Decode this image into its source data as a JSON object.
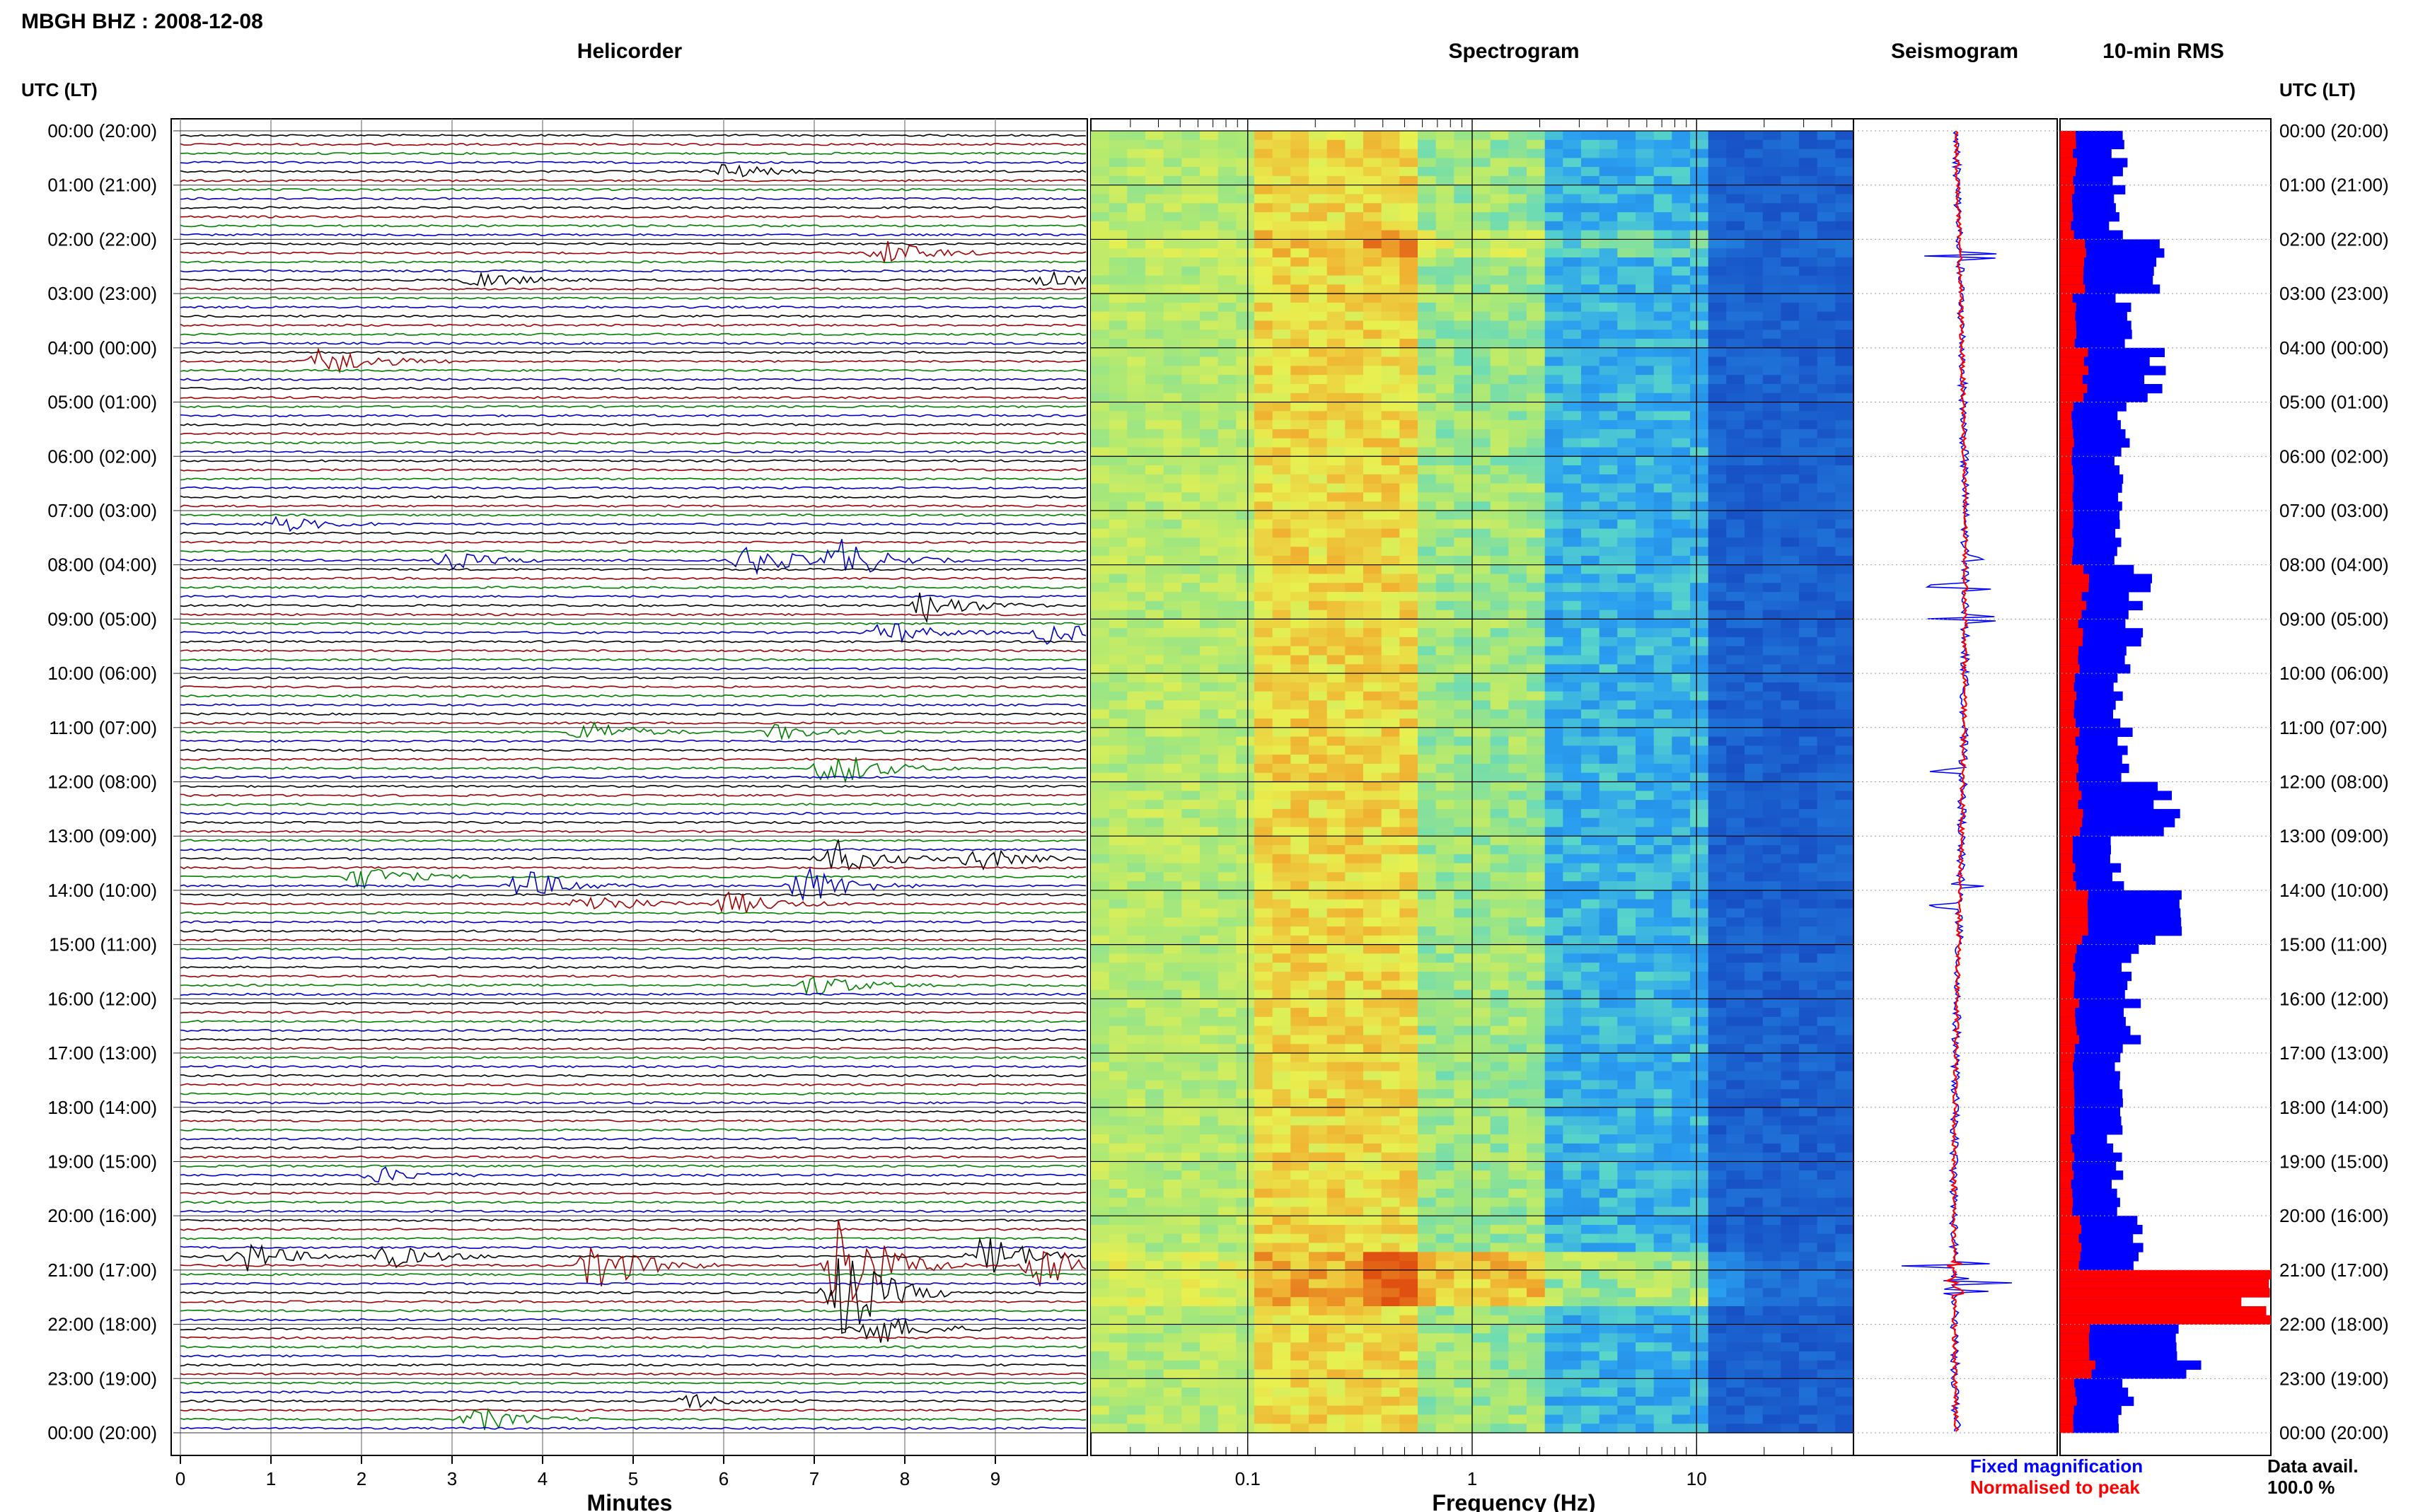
{
  "header": {
    "station_title": "MBGH BHZ : 2008-12-08",
    "utc_label": "UTC (LT)"
  },
  "panels": {
    "helicorder": "Helicorder",
    "spectrogram": "Spectrogram",
    "seismogram": "Seismogram",
    "rms": "10-min RMS"
  },
  "axes": {
    "minutes_label": "Minutes",
    "frequency_label": "Frequency (Hz)"
  },
  "legend": {
    "fixed": "Fixed magnification",
    "normalised": "Normalised to peak",
    "fixed_color": "#0000ff",
    "normalised_color": "#ff0000"
  },
  "availability": {
    "label": "Data avail.",
    "value": "100.0 %"
  },
  "colors": {
    "trace_cycle": [
      "#000000",
      "#a00000",
      "#008000",
      "#0000c0"
    ],
    "rms_fixed": "#0000ff",
    "rms_norm": "#ff0000",
    "spectrogram_ramp": [
      "#2aa0f0",
      "#5ad7c8",
      "#a8e878",
      "#e8f050",
      "#f0b030",
      "#e05010"
    ]
  },
  "chart_data": [
    {
      "type": "heatmap",
      "title": "Helicorder",
      "xlabel": "Minutes",
      "ylabel": "UTC (LT)",
      "x_ticks": [
        "0",
        "1",
        "2",
        "3",
        "4",
        "5",
        "6",
        "7",
        "8",
        "9"
      ],
      "xlim": [
        0,
        10
      ],
      "y_ticks": [
        "00:00 (20:00)",
        "01:00 (21:00)",
        "02:00 (22:00)",
        "03:00 (23:00)",
        "04:00 (00:00)",
        "05:00 (01:00)",
        "06:00 (02:00)",
        "07:00 (03:00)",
        "08:00 (04:00)",
        "09:00 (05:00)",
        "10:00 (06:00)",
        "11:00 (07:00)",
        "12:00 (08:00)",
        "13:00 (09:00)",
        "14:00 (10:00)",
        "15:00 (11:00)",
        "16:00 (12:00)",
        "17:00 (13:00)",
        "18:00 (14:00)",
        "19:00 (15:00)",
        "20:00 (16:00)",
        "21:00 (17:00)",
        "22:00 (18:00)",
        "23:00 (19:00)",
        "00:00 (20:00)"
      ],
      "events": [
        {
          "hour": 0.6,
          "minute": 6.0,
          "amplitude": 2
        },
        {
          "hour": 2.1,
          "minute": 7.8,
          "amplitude": 3
        },
        {
          "hour": 2.6,
          "minute": 3.3,
          "amplitude": 2
        },
        {
          "hour": 2.7,
          "minute": 9.6,
          "amplitude": 2
        },
        {
          "hour": 4.1,
          "minute": 1.6,
          "amplitude": 4
        },
        {
          "hour": 7.2,
          "minute": 1.1,
          "amplitude": 2
        },
        {
          "hour": 7.8,
          "minute": 3.0,
          "amplitude": 2
        },
        {
          "hour": 7.9,
          "minute": 6.3,
          "amplitude": 4
        },
        {
          "hour": 7.8,
          "minute": 7.3,
          "amplitude": 5
        },
        {
          "hour": 8.6,
          "minute": 8.2,
          "amplitude": 4
        },
        {
          "hour": 9.2,
          "minute": 7.8,
          "amplitude": 3
        },
        {
          "hour": 9.2,
          "minute": 9.6,
          "amplitude": 3
        },
        {
          "hour": 11.0,
          "minute": 4.5,
          "amplitude": 3
        },
        {
          "hour": 11.0,
          "minute": 6.6,
          "amplitude": 2
        },
        {
          "hour": 11.6,
          "minute": 7.2,
          "amplitude": 5
        },
        {
          "hour": 13.6,
          "minute": 2.0,
          "amplitude": 3
        },
        {
          "hour": 13.4,
          "minute": 7.2,
          "amplitude": 5
        },
        {
          "hour": 13.4,
          "minute": 8.8,
          "amplitude": 3
        },
        {
          "hour": 13.9,
          "minute": 3.8,
          "amplitude": 4
        },
        {
          "hour": 14.1,
          "minute": 4.5,
          "amplitude": 3
        },
        {
          "hour": 13.9,
          "minute": 6.9,
          "amplitude": 5
        },
        {
          "hour": 14.1,
          "minute": 6.1,
          "amplitude": 3
        },
        {
          "hour": 15.6,
          "minute": 7.0,
          "amplitude": 3
        },
        {
          "hour": 19.1,
          "minute": 2.2,
          "amplitude": 2
        },
        {
          "hour": 20.7,
          "minute": 0.7,
          "amplitude": 4
        },
        {
          "hour": 20.7,
          "minute": 2.3,
          "amplitude": 3
        },
        {
          "hour": 20.8,
          "minute": 4.6,
          "amplitude": 7
        },
        {
          "hour": 20.9,
          "minute": 7.3,
          "amplitude": 14
        },
        {
          "hour": 20.7,
          "minute": 8.9,
          "amplitude": 6
        },
        {
          "hour": 20.8,
          "minute": 9.5,
          "amplitude": 7
        },
        {
          "hour": 21.3,
          "minute": 7.3,
          "amplitude": 12
        },
        {
          "hour": 22.0,
          "minute": 7.6,
          "amplitude": 5
        },
        {
          "hour": 23.6,
          "minute": 3.3,
          "amplitude": 3
        },
        {
          "hour": 23.4,
          "minute": 5.6,
          "amplitude": 2
        }
      ]
    },
    {
      "type": "heatmap",
      "title": "Spectrogram",
      "xlabel": "Frequency (Hz)",
      "x_scale": "log",
      "xlim": [
        0.02,
        50
      ],
      "x_ticks": [
        "0.1",
        "1",
        "10"
      ]
    },
    {
      "type": "line",
      "title": "Seismogram",
      "series": [
        {
          "name": "Fixed magnification",
          "color": "#0000ff"
        },
        {
          "name": "Normalised to peak",
          "color": "#ff0000"
        }
      ],
      "spikes_hour": [
        2.3,
        7.9,
        8.4,
        9.0,
        11.8,
        13.9,
        14.3,
        20.9,
        21.2,
        21.4
      ]
    },
    {
      "type": "bar",
      "title": "10-min RMS",
      "orientation": "horizontal",
      "series": [
        {
          "name": "Fixed magnification",
          "color": "#0000ff"
        },
        {
          "name": "Normalised to peak",
          "color": "#ff0000"
        }
      ],
      "hours": [
        0,
        1,
        2,
        3,
        4,
        5,
        6,
        7,
        8,
        9,
        10,
        11,
        12,
        13,
        14,
        15,
        16,
        17,
        18,
        19,
        20,
        21,
        22,
        23
      ],
      "fixed_hourly": [
        0.28,
        0.27,
        0.44,
        0.31,
        0.45,
        0.3,
        0.28,
        0.27,
        0.38,
        0.36,
        0.27,
        0.3,
        0.52,
        0.28,
        0.52,
        0.33,
        0.34,
        0.26,
        0.26,
        0.28,
        0.35,
        1.0,
        0.6,
        0.31
      ],
      "normalised_hourly": [
        0.07,
        0.06,
        0.11,
        0.07,
        0.12,
        0.06,
        0.06,
        0.06,
        0.12,
        0.1,
        0.07,
        0.08,
        0.1,
        0.07,
        0.12,
        0.07,
        0.08,
        0.06,
        0.06,
        0.06,
        0.09,
        1.0,
        0.15,
        0.07
      ]
    }
  ]
}
